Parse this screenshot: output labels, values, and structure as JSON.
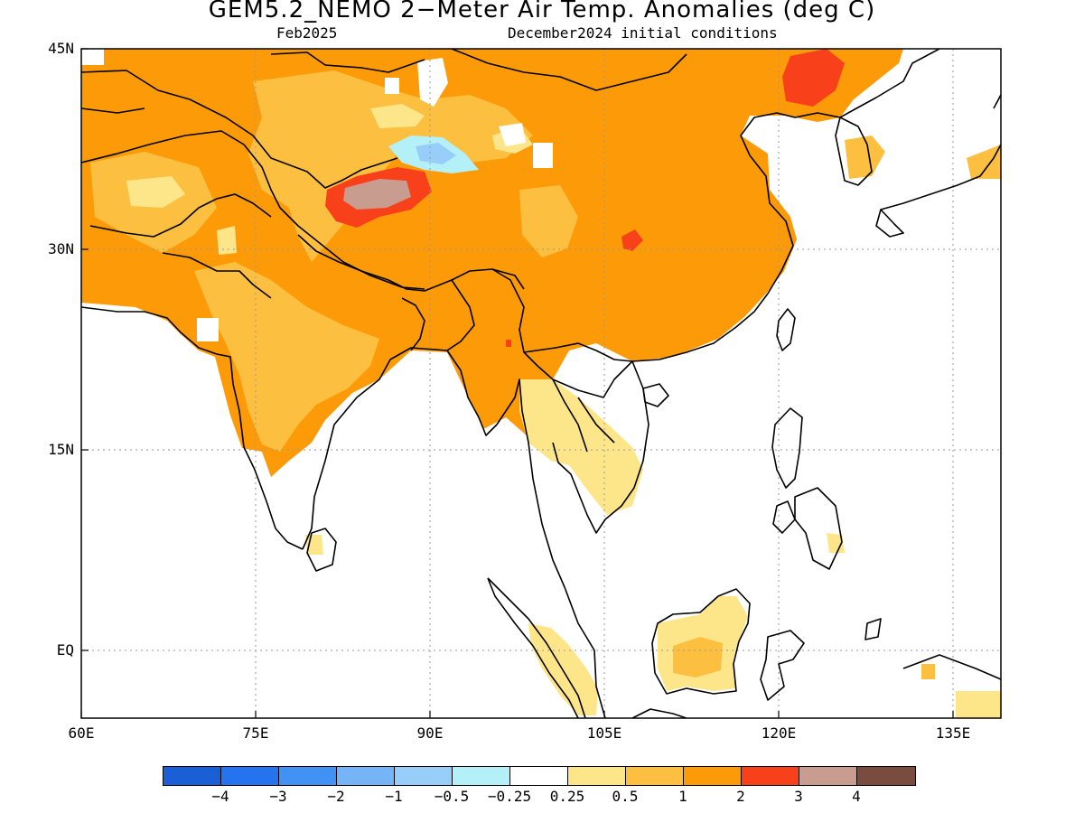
{
  "title": "GEM5.2_NEMO 2−Meter Air Temp. Anomalies (deg C)",
  "subtitle_left": "Feb2025",
  "subtitle_right": "December2024 initial conditions",
  "axes": {
    "lat_labels": [
      "45N",
      "30N",
      "15N",
      "EQ"
    ],
    "lon_labels": [
      "60E",
      "75E",
      "90E",
      "105E",
      "120E",
      "135E"
    ]
  },
  "colorbar": {
    "colors": [
      "#1a5fd6",
      "#2673f0",
      "#4292f5",
      "#74b4f7",
      "#96cdf9",
      "#b4f0f8",
      "#ffffff",
      "#fde68a",
      "#fdbf3f",
      "#fc9a07",
      "#f8401b",
      "#c89c8e",
      "#7a4c40"
    ],
    "labels": [
      "−4",
      "−3",
      "−2",
      "−1",
      "−0.5",
      "−0.25",
      "0.25",
      "0.5",
      "1",
      "2",
      "3",
      "4"
    ]
  },
  "colors": {
    "frame": "#000000",
    "grid": "#9a9a9a",
    "coast": "#000000",
    "anom_0_25_0_5": "#fde68a",
    "anom_0_5_1": "#fdbf3f",
    "anom_1_2": "#fc9a07",
    "anom_2_3": "#f8401b",
    "anom_3_4": "#c89c8e",
    "anom_neg_0_5_neg_0_25": "#b4f0f8",
    "anom_neg_1_neg_0_5": "#96cdf9"
  }
}
